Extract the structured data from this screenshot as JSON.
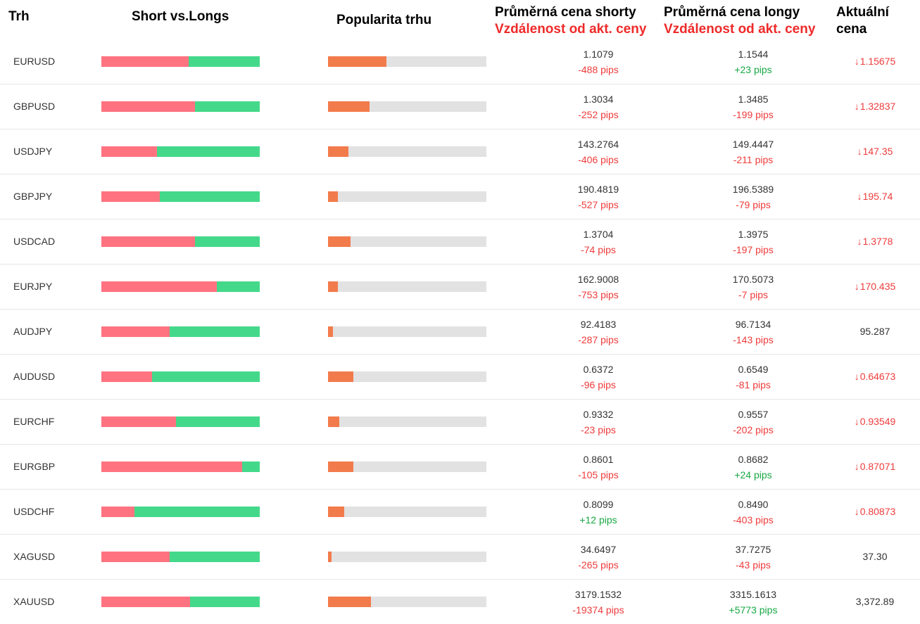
{
  "header": {
    "col_market": "Trh",
    "col_short_long": "Short vs.Longs",
    "col_popularity": "Popularita trhu",
    "col_avg_short": "Průměrná cena shorty",
    "col_avg_short_sub": "Vzdálenost od akt. ceny",
    "col_avg_long": "Průměrná cena longy",
    "col_avg_long_sub": "Vzdálenost od akt. ceny",
    "col_current_1": "Aktuální",
    "col_current_2": "cena"
  },
  "colors": {
    "short": "#ff7381",
    "long": "#44d98a",
    "popularity": "#f27b4c",
    "track": "#e2e2e2",
    "negative": "#ef3b3b",
    "positive": "#17a844"
  },
  "rows": [
    {
      "pair": "EURUSD",
      "short_pct": 55,
      "popularity": 37,
      "avg_short": "1.1079",
      "short_pips": "-488 pips",
      "short_pips_sign": "neg",
      "avg_long": "1.1544",
      "long_pips": "+23 pips",
      "long_pips_sign": "pos",
      "current": "1.15675",
      "trend": "down"
    },
    {
      "pair": "GBPUSD",
      "short_pct": 59,
      "popularity": 26,
      "avg_short": "1.3034",
      "short_pips": "-252 pips",
      "short_pips_sign": "neg",
      "avg_long": "1.3485",
      "long_pips": "-199 pips",
      "long_pips_sign": "neg",
      "current": "1.32837",
      "trend": "down"
    },
    {
      "pair": "USDJPY",
      "short_pct": 35,
      "popularity": 13,
      "avg_short": "143.2764",
      "short_pips": "-406 pips",
      "short_pips_sign": "neg",
      "avg_long": "149.4447",
      "long_pips": "-211 pips",
      "long_pips_sign": "neg",
      "current": "147.35",
      "trend": "down"
    },
    {
      "pair": "GBPJPY",
      "short_pct": 37,
      "popularity": 6,
      "avg_short": "190.4819",
      "short_pips": "-527 pips",
      "short_pips_sign": "neg",
      "avg_long": "196.5389",
      "long_pips": "-79 pips",
      "long_pips_sign": "neg",
      "current": "195.74",
      "trend": "down"
    },
    {
      "pair": "USDCAD",
      "short_pct": 59,
      "popularity": 14,
      "avg_short": "1.3704",
      "short_pips": "-74 pips",
      "short_pips_sign": "neg",
      "avg_long": "1.3975",
      "long_pips": "-197 pips",
      "long_pips_sign": "neg",
      "current": "1.3778",
      "trend": "down"
    },
    {
      "pair": "EURJPY",
      "short_pct": 73,
      "popularity": 6,
      "avg_short": "162.9008",
      "short_pips": "-753 pips",
      "short_pips_sign": "neg",
      "avg_long": "170.5073",
      "long_pips": "-7 pips",
      "long_pips_sign": "neg",
      "current": "170.435",
      "trend": "down"
    },
    {
      "pair": "AUDJPY",
      "short_pct": 43,
      "popularity": 3,
      "avg_short": "92.4183",
      "short_pips": "-287 pips",
      "short_pips_sign": "neg",
      "avg_long": "96.7134",
      "long_pips": "-143 pips",
      "long_pips_sign": "neg",
      "current": "95.287",
      "trend": "flat"
    },
    {
      "pair": "AUDUSD",
      "short_pct": 32,
      "popularity": 16,
      "avg_short": "0.6372",
      "short_pips": "-96 pips",
      "short_pips_sign": "neg",
      "avg_long": "0.6549",
      "long_pips": "-81 pips",
      "long_pips_sign": "neg",
      "current": "0.64673",
      "trend": "down"
    },
    {
      "pair": "EURCHF",
      "short_pct": 47,
      "popularity": 7,
      "avg_short": "0.9332",
      "short_pips": "-23 pips",
      "short_pips_sign": "neg",
      "avg_long": "0.9557",
      "long_pips": "-202 pips",
      "long_pips_sign": "neg",
      "current": "0.93549",
      "trend": "down"
    },
    {
      "pair": "EURGBP",
      "short_pct": 89,
      "popularity": 16,
      "avg_short": "0.8601",
      "short_pips": "-105 pips",
      "short_pips_sign": "neg",
      "avg_long": "0.8682",
      "long_pips": "+24 pips",
      "long_pips_sign": "pos",
      "current": "0.87071",
      "trend": "down"
    },
    {
      "pair": "USDCHF",
      "short_pct": 21,
      "popularity": 10,
      "avg_short": "0.8099",
      "short_pips": "+12 pips",
      "short_pips_sign": "pos",
      "avg_long": "0.8490",
      "long_pips": "-403 pips",
      "long_pips_sign": "neg",
      "current": "0.80873",
      "trend": "down"
    },
    {
      "pair": "XAGUSD",
      "short_pct": 43,
      "popularity": 2,
      "avg_short": "34.6497",
      "short_pips": "-265 pips",
      "short_pips_sign": "neg",
      "avg_long": "37.7275",
      "long_pips": "-43 pips",
      "long_pips_sign": "neg",
      "current": "37.30",
      "trend": "flat"
    },
    {
      "pair": "XAUUSD",
      "short_pct": 56,
      "popularity": 27,
      "avg_short": "3179.1532",
      "short_pips": "-19374 pips",
      "short_pips_sign": "neg",
      "avg_long": "3315.1613",
      "long_pips": "+5773 pips",
      "long_pips_sign": "pos",
      "current": "3,372.89",
      "trend": "flat"
    }
  ]
}
